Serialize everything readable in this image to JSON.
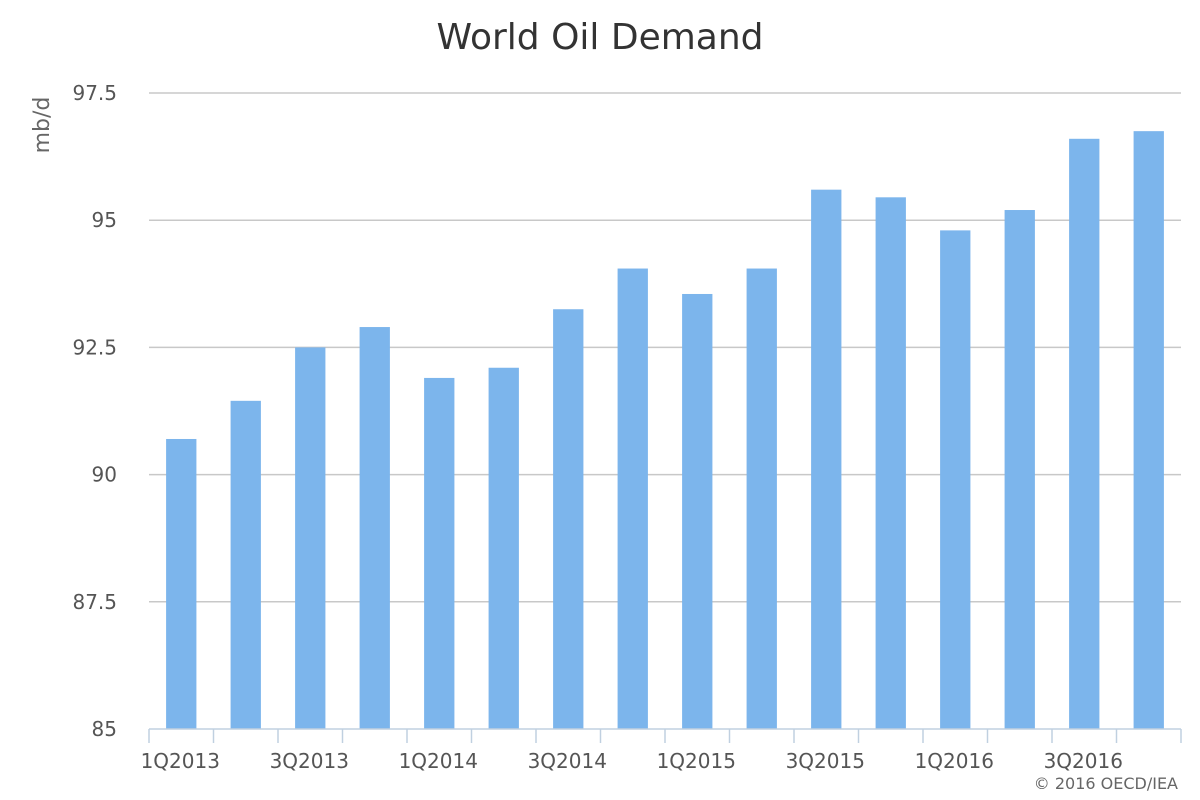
{
  "chart_data": {
    "type": "bar",
    "title": "World Oil Demand",
    "ylabel": "mb/d",
    "xlabel": "",
    "ylim": [
      85,
      97.5
    ],
    "yticks": [
      85,
      87.5,
      90,
      92.5,
      95,
      97.5
    ],
    "ytick_labels": [
      "85",
      "87.5",
      "90",
      "92.5",
      "95",
      "97.5"
    ],
    "grid": true,
    "legend": "none",
    "bar_color": "#7cb5ec",
    "categories": [
      "1Q2013",
      "2Q2013",
      "3Q2013",
      "4Q2013",
      "1Q2014",
      "2Q2014",
      "3Q2014",
      "4Q2014",
      "1Q2015",
      "2Q2015",
      "3Q2015",
      "4Q2015",
      "1Q2016",
      "2Q2016",
      "3Q2016",
      "4Q2016"
    ],
    "xtick_labels": [
      "1Q2013",
      "3Q2013",
      "1Q2014",
      "3Q2014",
      "1Q2015",
      "3Q2015",
      "1Q2016",
      "3Q2016"
    ],
    "values": [
      90.7,
      91.45,
      92.5,
      92.9,
      91.9,
      92.1,
      93.25,
      94.05,
      93.55,
      94.05,
      95.6,
      95.45,
      94.8,
      95.2,
      96.6,
      96.75
    ],
    "credit": "© 2016 OECD/IEA"
  }
}
